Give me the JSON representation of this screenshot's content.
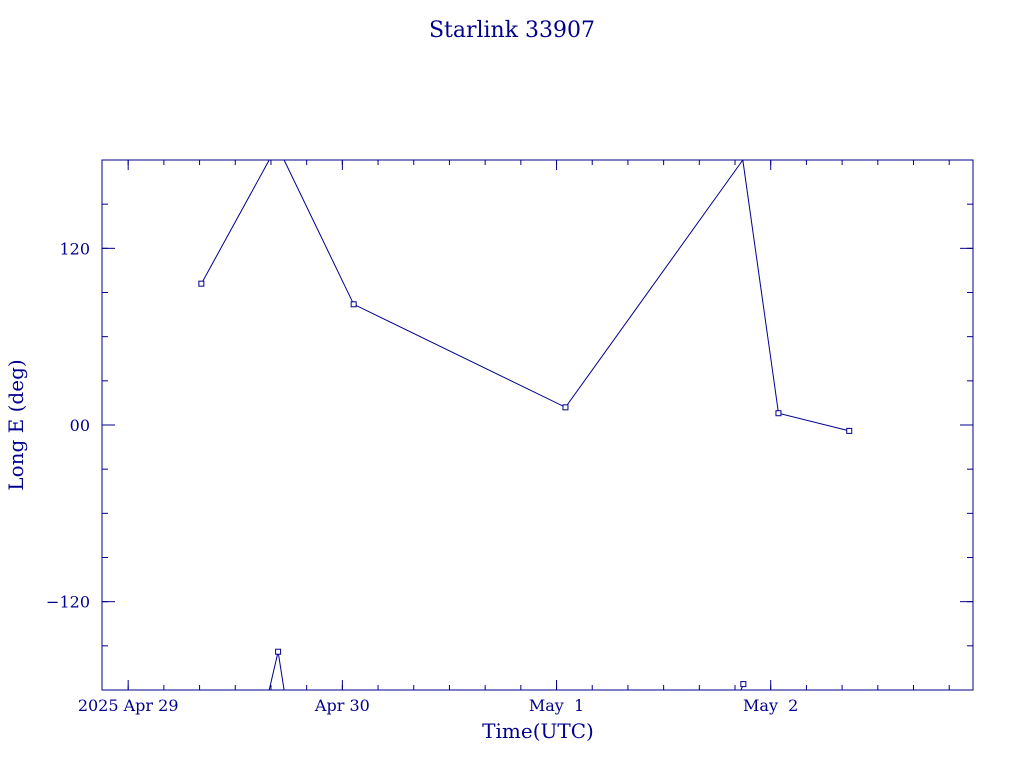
{
  "chart_data": {
    "type": "line",
    "title": "Starlink 33907",
    "xlabel": "Time(UTC)",
    "ylabel": "Long E (deg)",
    "xlim": [
      "2025-04-28T21:04",
      "2025-05-02T22:40"
    ],
    "ylim": [
      -180,
      180
    ],
    "x_ticks": [
      {
        "label": "2025 Apr 29",
        "date": "2025-04-29T00:00"
      },
      {
        "label": "Apr 30",
        "date": "2025-04-30T00:00"
      },
      {
        "label": "May  1",
        "date": "2025-05-01T00:00"
      },
      {
        "label": "May  2",
        "date": "2025-05-02T00:00"
      }
    ],
    "y_ticks": [
      {
        "label": "120",
        "value": 120
      },
      {
        "label": "00",
        "value": 0
      },
      {
        "label": "−120",
        "value": -120
      }
    ],
    "grid": false,
    "colors": {
      "line": "#00008b",
      "frame": "#00008b",
      "text": "#00008b"
    },
    "series": [
      {
        "name": "",
        "points": [
          {
            "x": "2025-04-29T08:12",
            "y": 96
          },
          {
            "x": "2025-04-29T15:48",
            "y": 180,
            "marker": false
          },
          {
            "x": "2025-04-29T17:28",
            "y": 180,
            "marker": false
          },
          {
            "x": "2025-04-30T01:16",
            "y": 82
          },
          {
            "x": "2025-05-01T01:00",
            "y": 12
          },
          {
            "x": "2025-05-01T20:52",
            "y": 180,
            "marker": false
          }
        ]
      },
      {
        "name": "",
        "points": [
          {
            "x": "2025-04-29T15:48",
            "y": -180,
            "marker": false
          },
          {
            "x": "2025-04-29T16:48",
            "y": -154
          },
          {
            "x": "2025-04-29T17:28",
            "y": -180,
            "marker": false
          }
        ]
      },
      {
        "name": "",
        "points": [
          {
            "x": "2025-05-01T20:52",
            "y": 180,
            "marker": false
          },
          {
            "x": "2025-05-02T00:52",
            "y": 8
          },
          {
            "x": "2025-05-02T08:48",
            "y": -4
          }
        ]
      },
      {
        "name": "",
        "points": [
          {
            "x": "2025-05-01T20:40",
            "y": -180,
            "marker": false
          },
          {
            "x": "2025-05-01T20:56",
            "y": -176
          }
        ]
      }
    ]
  }
}
